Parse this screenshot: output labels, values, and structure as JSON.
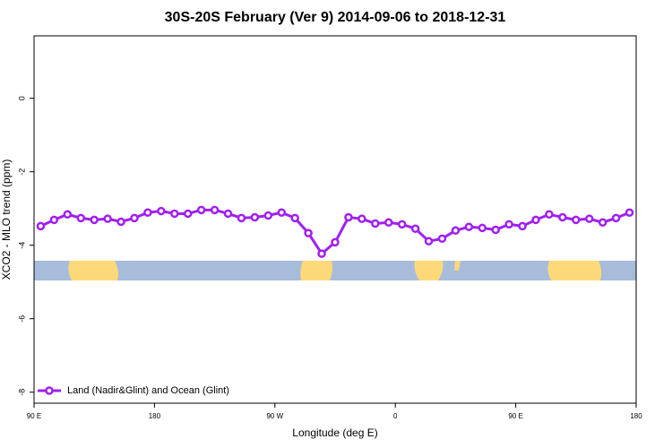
{
  "chart_data": {
    "type": "line",
    "title": "30S-20S February (Ver 9)   2014-09-06 to 2018-12-31",
    "xlabel": "Longitude (deg E)",
    "ylabel": "XCO2 - MLO trend (ppm)",
    "xlim": [
      90,
      540
    ],
    "ylim": [
      -8.3,
      1.7
    ],
    "xticks": [
      {
        "value": 90,
        "label": "90 E"
      },
      180,
      {
        "value": 270,
        "label": "90 W"
      },
      {
        "value": 360,
        "label": "0"
      },
      {
        "value": 450,
        "label": "90 E"
      },
      {
        "value": 540,
        "label": "180"
      }
    ],
    "yticks": [
      0,
      -2,
      -4,
      -6,
      -8
    ],
    "legend": "bottom-left",
    "series": [
      {
        "name": "Land (Nadir&Glint) and Ocean (Glint)",
        "color": "#a020f0",
        "x": [
          95,
          105,
          115,
          125,
          135,
          145,
          155,
          165,
          175,
          185,
          195,
          205,
          215,
          225,
          235,
          245,
          255,
          265,
          275,
          285,
          295,
          305,
          315,
          325,
          335,
          345,
          355,
          365,
          375,
          385,
          395,
          405,
          415,
          425,
          435,
          445,
          455,
          465,
          475,
          485,
          495,
          505,
          515,
          525,
          535
        ],
        "values": [
          -3.48,
          -3.31,
          -3.16,
          -3.26,
          -3.31,
          -3.28,
          -3.36,
          -3.26,
          -3.11,
          -3.07,
          -3.14,
          -3.14,
          -3.04,
          -3.04,
          -3.14,
          -3.26,
          -3.24,
          -3.19,
          -3.11,
          -3.26,
          -3.67,
          -4.23,
          -3.92,
          -3.24,
          -3.28,
          -3.41,
          -3.38,
          -3.43,
          -3.55,
          -3.89,
          -3.82,
          -3.6,
          -3.5,
          -3.53,
          -3.58,
          -3.43,
          -3.48,
          -3.31,
          -3.16,
          -3.24,
          -3.31,
          -3.28,
          -3.38,
          -3.26,
          -3.11
        ]
      }
    ]
  }
}
